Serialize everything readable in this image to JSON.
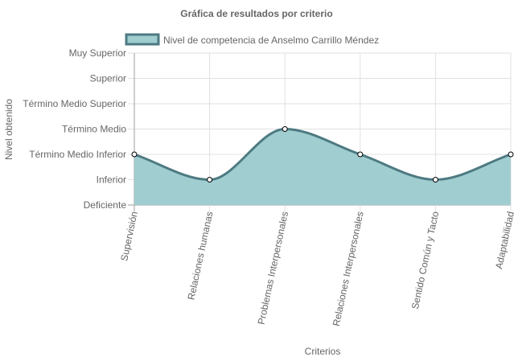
{
  "chart_data": {
    "type": "area",
    "title": "Gráfica de resultados por criterio",
    "xlabel": "Criterios",
    "ylabel": "Nivel obtenido",
    "levels": [
      "Deficiente",
      "Inferior",
      "Término Medio Inferior",
      "Término Medio",
      "Término Medio Superior",
      "Superior",
      "Muy Superior"
    ],
    "categories": [
      "Supervisión",
      "Relaciones humanas",
      "Problemas Interpersonales",
      "Relaciones Interpersonales",
      "Sentido Común y Tacto",
      "Adaptabilidad"
    ],
    "series": [
      {
        "name": "Nivel de competencia de Anselmo Carrillo Méndez",
        "values": [
          2,
          1,
          3,
          2,
          1,
          2
        ],
        "value_labels": [
          "Término Medio Inferior",
          "Inferior",
          "Término Medio",
          "Término Medio Inferior",
          "Inferior",
          "Término Medio Inferior"
        ]
      }
    ],
    "ylim": [
      0,
      6
    ],
    "grid": true,
    "legend_position": "top",
    "colors": {
      "fill": "#a0cdd0",
      "line": "#4e7a82",
      "grid": "#e0e0e0",
      "axis": "#9e9e9e",
      "text": "#666666"
    }
  }
}
